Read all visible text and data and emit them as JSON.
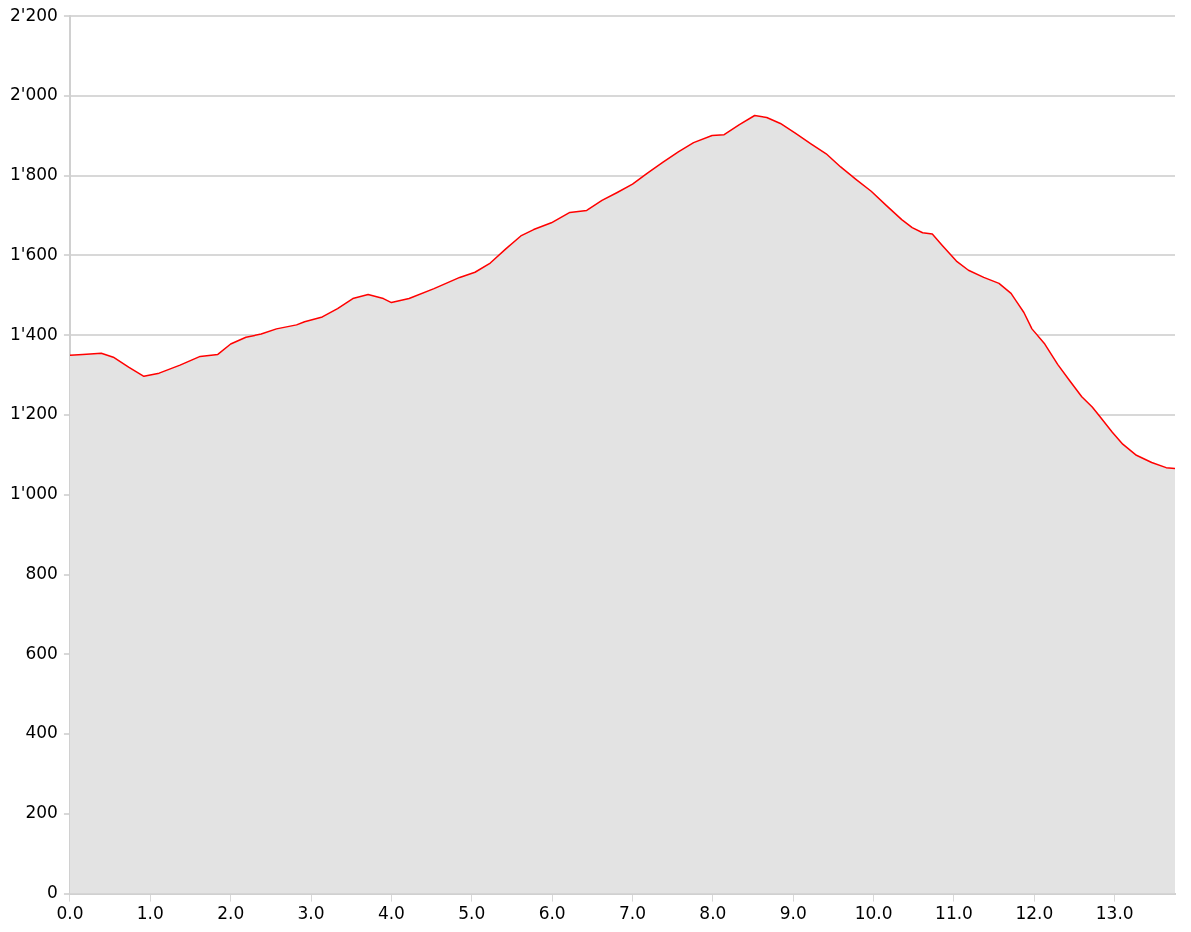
{
  "chart_data": {
    "type": "area",
    "x": [
      0,
      0.16,
      0.39,
      0.54,
      0.73,
      0.92,
      1.11,
      1.37,
      1.62,
      1.84,
      2.0,
      2.19,
      2.38,
      2.57,
      2.82,
      2.92,
      3.14,
      3.33,
      3.52,
      3.71,
      3.9,
      4.0,
      4.22,
      4.53,
      4.85,
      5.04,
      5.23,
      5.42,
      5.61,
      5.77,
      5.99,
      6.22,
      6.43,
      6.62,
      6.81,
      7.0,
      7.19,
      7.38,
      7.57,
      7.76,
      7.99,
      8.14,
      8.33,
      8.52,
      8.67,
      8.84,
      9.03,
      9.22,
      9.41,
      9.59,
      9.78,
      9.97,
      10.16,
      10.35,
      10.48,
      10.61,
      10.73,
      10.86,
      11.03,
      11.18,
      11.37,
      11.56,
      11.71,
      11.87,
      11.97,
      12.13,
      12.29,
      12.44,
      12.59,
      12.72,
      12.82,
      12.97,
      13.1,
      13.27,
      13.46,
      13.64,
      13.75
    ],
    "series": [
      {
        "color": "#ff0000",
        "values": [
          1350,
          1352,
          1355,
          1345,
          1320,
          1297,
          1305,
          1325,
          1347,
          1352,
          1378,
          1395,
          1403,
          1416,
          1426,
          1434,
          1446,
          1467,
          1492,
          1502,
          1492,
          1482,
          1492,
          1517,
          1545,
          1558,
          1581,
          1616,
          1649,
          1665,
          1682,
          1708,
          1713,
          1738,
          1758,
          1779,
          1807,
          1834,
          1860,
          1883,
          1901,
          1903,
          1928,
          1951,
          1946,
          1931,
          1906,
          1880,
          1855,
          1822,
          1791,
          1761,
          1725,
          1690,
          1670,
          1657,
          1654,
          1624,
          1586,
          1563,
          1545,
          1530,
          1505,
          1457,
          1416,
          1378,
          1327,
          1286,
          1246,
          1220,
          1195,
          1157,
          1127,
          1099,
          1081,
          1068,
          1066
        ]
      }
    ],
    "xlim": [
      0,
      13.75
    ],
    "xticks": [
      {
        "value": 0,
        "label": "0.0"
      },
      {
        "value": 1,
        "label": "1.0"
      },
      {
        "value": 2,
        "label": "2.0"
      },
      {
        "value": 3,
        "label": "3.0"
      },
      {
        "value": 4,
        "label": "4.0"
      },
      {
        "value": 5,
        "label": "5.0"
      },
      {
        "value": 6,
        "label": "6.0"
      },
      {
        "value": 7,
        "label": "7.0"
      },
      {
        "value": 8,
        "label": "8.0"
      },
      {
        "value": 9,
        "label": "9.0"
      },
      {
        "value": 10,
        "label": "10.0"
      },
      {
        "value": 11,
        "label": "11.0"
      },
      {
        "value": 12,
        "label": "12.0"
      },
      {
        "value": 13,
        "label": "13.0"
      }
    ],
    "ylim": [
      0,
      2200
    ],
    "yticks": [
      0,
      200,
      400,
      600,
      800,
      {
        "value": 1000,
        "label": "1'000"
      },
      {
        "value": 1200,
        "label": "1'200"
      },
      {
        "value": 1400,
        "label": "1'400"
      },
      {
        "value": 1600,
        "label": "1'600"
      },
      {
        "value": 1800,
        "label": "1'800"
      },
      {
        "value": 2000,
        "label": "2'000"
      },
      {
        "value": 2200,
        "label": "2'200"
      }
    ],
    "grid": "y",
    "legend": false,
    "marker": "none"
  }
}
